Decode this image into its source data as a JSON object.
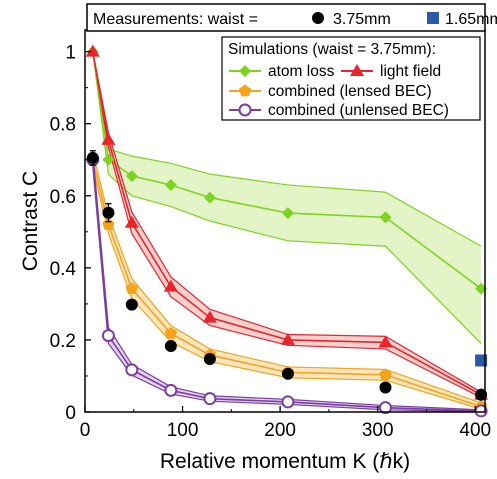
{
  "chart_data": {
    "type": "line",
    "xlabel": "Relative momentum K (ℏk)",
    "ylabel": "Contrast C",
    "xlim": [
      0,
      410
    ],
    "ylim": [
      0,
      1.06
    ],
    "xticks": [
      0,
      100,
      200,
      300,
      400
    ],
    "yticks": [
      0,
      0.2,
      0.4,
      0.6,
      0.8,
      1.0
    ],
    "xtick_labels": [
      "0",
      "100",
      "200",
      "300",
      "400"
    ],
    "ytick_labels": [
      "0",
      "0.2",
      "0.4",
      "0.6",
      "0.8",
      "1"
    ],
    "grid": false,
    "measurements_legend": {
      "label": "Measurements:  waist = ",
      "entries": [
        {
          "label": "3.75mm",
          "marker": "circle",
          "color": "#000000"
        },
        {
          "label": "1.65mm",
          "marker": "square",
          "color": "#2d57a8"
        }
      ]
    },
    "simulations_legend": {
      "title": "Simulations  (waist = 3.75mm):",
      "entries": [
        {
          "label": "atom  loss",
          "color": "#7ed321",
          "marker": "diamond"
        },
        {
          "label": "light  field",
          "color": "#e8242c",
          "marker": "triangle"
        },
        {
          "label": "combined  (lensed BEC)",
          "color": "#f5a31a",
          "marker": "pentagon"
        },
        {
          "label": "combined  (unlensed BEC)",
          "color": "#7b3fa0",
          "marker": "open-circle"
        }
      ]
    },
    "series": [
      {
        "name": "atom  loss",
        "color": "#7ed321",
        "fill": "#e3f4c6",
        "marker": "diamond",
        "x": [
          8,
          24,
          48,
          88,
          128,
          208,
          308,
          406
        ],
        "y": [
          1.0,
          0.7,
          0.655,
          0.63,
          0.595,
          0.552,
          0.54,
          0.342
        ],
        "band_upper": [
          1.0,
          0.73,
          0.71,
          0.69,
          0.66,
          0.63,
          0.61,
          0.46
        ],
        "band_lower": [
          1.0,
          0.66,
          0.6,
          0.57,
          0.53,
          0.475,
          0.46,
          0.19
        ]
      },
      {
        "name": "light  field",
        "color": "#e8242c",
        "fill": "#f8d0cc",
        "marker": "triangle",
        "x": [
          8,
          24,
          48,
          88,
          128,
          208,
          308,
          406
        ],
        "y": [
          1.0,
          0.755,
          0.525,
          0.348,
          0.262,
          0.2,
          0.193,
          0.048
        ],
        "band_upper": [
          1.0,
          0.775,
          0.555,
          0.375,
          0.285,
          0.215,
          0.21,
          0.055
        ],
        "band_lower": [
          1.0,
          0.735,
          0.495,
          0.32,
          0.24,
          0.185,
          0.175,
          0.04
        ]
      },
      {
        "name": "combined  (lensed BEC)",
        "color": "#f5a31a",
        "fill": "#fde6bf",
        "marker": "pentagon",
        "x": [
          8,
          24,
          48,
          88,
          128,
          208,
          308,
          406
        ],
        "y": [
          0.7,
          0.52,
          0.342,
          0.218,
          0.158,
          0.11,
          0.103,
          0.015
        ],
        "band_upper": [
          0.72,
          0.545,
          0.37,
          0.24,
          0.175,
          0.125,
          0.118,
          0.025
        ],
        "band_lower": [
          0.68,
          0.495,
          0.315,
          0.195,
          0.14,
          0.095,
          0.088,
          0.008
        ]
      },
      {
        "name": "combined  (unlensed BEC)",
        "color": "#7b3fa0",
        "fill": "#e2d2ec",
        "marker": "open-circle",
        "x": [
          8,
          24,
          48,
          88,
          128,
          208,
          308,
          406
        ],
        "y": [
          0.7,
          0.212,
          0.117,
          0.06,
          0.037,
          0.028,
          0.012,
          0.003
        ],
        "band_upper": [
          0.72,
          0.235,
          0.132,
          0.07,
          0.045,
          0.035,
          0.018,
          0.006
        ],
        "band_lower": [
          0.68,
          0.19,
          0.102,
          0.05,
          0.03,
          0.021,
          0.006,
          0.001
        ]
      },
      {
        "name": "3.75mm",
        "color": "#000000",
        "marker": "circle",
        "x": [
          8,
          24,
          48,
          88,
          128,
          208,
          308,
          406
        ],
        "y": [
          0.705,
          0.553,
          0.298,
          0.183,
          0.147,
          0.106,
          0.068,
          0.048
        ],
        "yerr": [
          0.02,
          0.025,
          0.012,
          0.01,
          0.01,
          0.008,
          0.008,
          0.006
        ]
      },
      {
        "name": "1.65mm",
        "color": "#2d57a8",
        "marker": "square",
        "x": [
          406
        ],
        "y": [
          0.143
        ]
      }
    ]
  }
}
